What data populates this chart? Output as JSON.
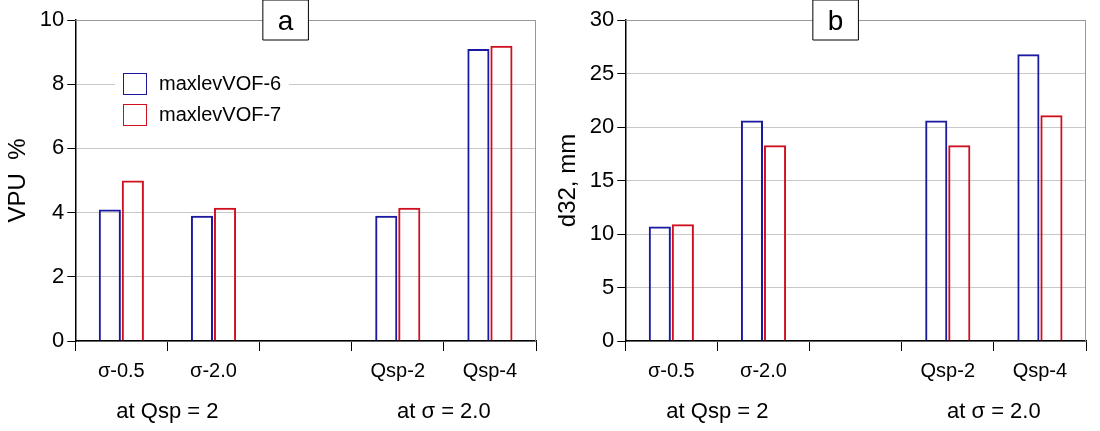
{
  "chart_data": [
    {
      "type": "bar",
      "title": "a",
      "ylabel": "VPU  %",
      "categories": [
        "σ-0.5",
        "σ-2.0",
        null,
        "Qsp-2",
        "Qsp-4"
      ],
      "series": [
        {
          "name": "maxlevVOF-6",
          "color": "#1a1aa0",
          "values": [
            4.1,
            3.9,
            null,
            3.9,
            9.1
          ]
        },
        {
          "name": "maxlevVOF-7",
          "color": "#d01020",
          "values": [
            5.0,
            4.15,
            null,
            4.15,
            9.2
          ]
        }
      ],
      "ylim": [
        0,
        10
      ],
      "yticks": [
        0,
        2,
        4,
        6,
        8,
        10
      ],
      "grid": "y",
      "legend": "top left",
      "annotations": [
        "at Qsp = 2",
        "at σ = 2.0"
      ]
    },
    {
      "type": "bar",
      "title": "b",
      "ylabel": "d32, mm",
      "categories": [
        "σ-0.5",
        "σ-2.0",
        null,
        "Qsp-2",
        "Qsp-4"
      ],
      "series": [
        {
          "color": "#1a1aa0",
          "values": [
            10.7,
            20.6,
            null,
            20.6,
            26.8
          ]
        },
        {
          "color": "#d01020",
          "values": [
            10.9,
            18.3,
            null,
            18.3,
            21.1
          ]
        }
      ],
      "ylim": [
        0,
        30
      ],
      "yticks": [
        0,
        5,
        10,
        15,
        20,
        25,
        30
      ],
      "grid": "y",
      "annotations": [
        "at Qsp = 2",
        "at σ = 2.0"
      ]
    }
  ]
}
